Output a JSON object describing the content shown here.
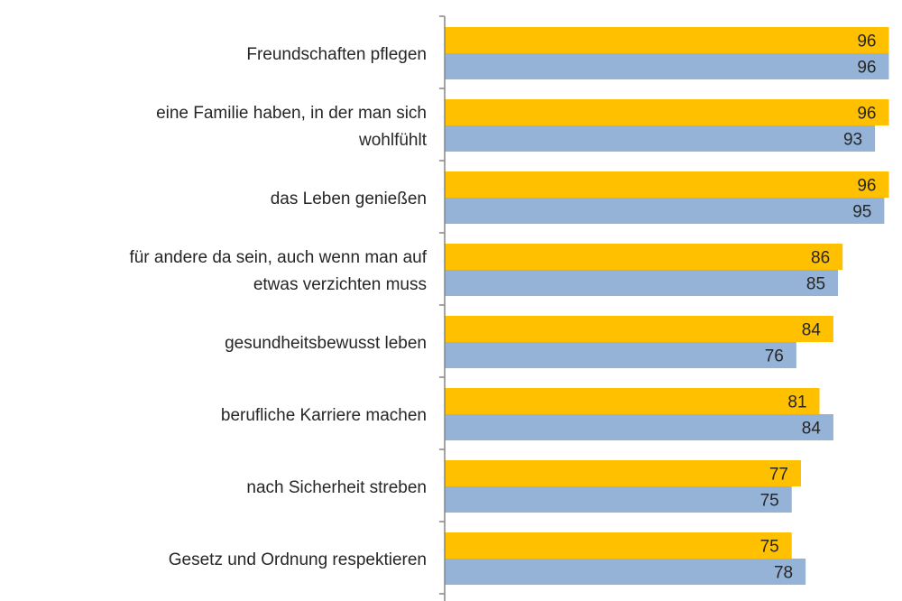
{
  "chart_data": {
    "type": "bar",
    "orientation": "horizontal",
    "categories": [
      [
        "Freundschaften pflegen"
      ],
      [
        "eine Familie haben, in der man sich",
        "wohlfühlt"
      ],
      [
        "das Leben genießen"
      ],
      [
        "für andere da sein, auch wenn man auf",
        "etwas verzichten muss"
      ],
      [
        "gesundheitsbewusst leben"
      ],
      [
        "berufliche Karriere machen"
      ],
      [
        "nach Sicherheit streben"
      ],
      [
        "Gesetz und Ordnung respektieren"
      ]
    ],
    "series": [
      {
        "color": "#FFC000",
        "values": [
          96,
          96,
          96,
          86,
          84,
          81,
          77,
          75
        ]
      },
      {
        "color": "#95B3D7",
        "values": [
          96,
          93,
          95,
          85,
          76,
          84,
          75,
          78
        ]
      }
    ],
    "xlim": [
      0,
      96
    ],
    "grid": false,
    "data_labels": true
  }
}
